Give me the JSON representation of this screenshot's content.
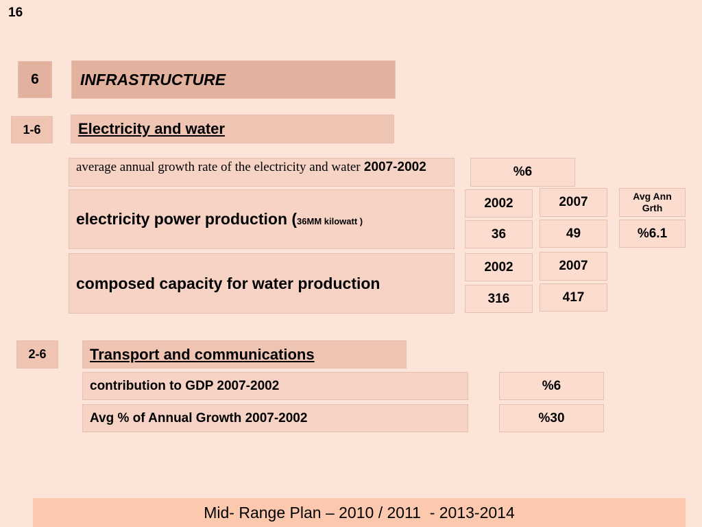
{
  "slide_number": "16",
  "section": {
    "number": "6",
    "title": "INFRASTRUCTURE"
  },
  "subsections": [
    {
      "number": "1-6",
      "title": "Electricity and water",
      "summary": {
        "label_text": "average annual growth rate of the electricity and water",
        "label_years": "2007-2002",
        "value": "%6"
      },
      "rows": [
        {
          "label_main": "electricity power production (",
          "label_unit": "36MM kilowatt )",
          "year_a": "2002",
          "year_b": "2007",
          "value_a": "36",
          "value_b": "49",
          "growth_header": "Avg Ann Grth",
          "growth_value": "%6.1"
        },
        {
          "label_main": "composed capacity for water production",
          "year_a": "2002",
          "year_b": "2007",
          "value_a": "316",
          "value_b": "417"
        }
      ]
    },
    {
      "number": "2-6",
      "title": "Transport and communications",
      "rows": [
        {
          "label": "contribution to GDP 2007-2002",
          "value": "%6"
        },
        {
          "label": "Avg % of Annual Growth 2007-2002",
          "value": "%30"
        }
      ]
    }
  ],
  "footer": "Mid- Range Plan – 2010 / 2011  - 2013-2014"
}
